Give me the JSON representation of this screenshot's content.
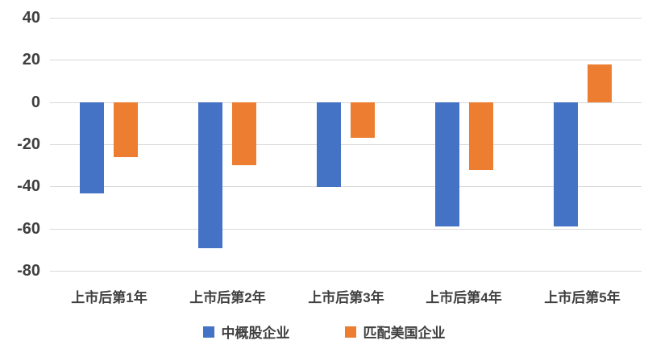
{
  "chart_data": {
    "type": "bar",
    "title": "",
    "xlabel": "",
    "ylabel": "",
    "categories": [
      "上市后第1年",
      "上市后第2年",
      "上市后第3年",
      "上市后第4年",
      "上市后第5年"
    ],
    "series": [
      {
        "name": "中概股企业",
        "color": "#4472c4",
        "values": [
          -43,
          -69,
          -40,
          -59,
          -59
        ]
      },
      {
        "name": "匹配美国企业",
        "color": "#ed7d31",
        "values": [
          -26,
          -30,
          -17,
          -32,
          18
        ]
      }
    ],
    "ylim": [
      -80,
      40
    ],
    "yticks": [
      40,
      20,
      0,
      -20,
      -40,
      -60,
      -80
    ],
    "grid": true,
    "legend_position": "bottom",
    "colors": {
      "gridline": "#d9d9d9",
      "axis_text": "#3f3f3f",
      "background": "#ffffff"
    }
  }
}
